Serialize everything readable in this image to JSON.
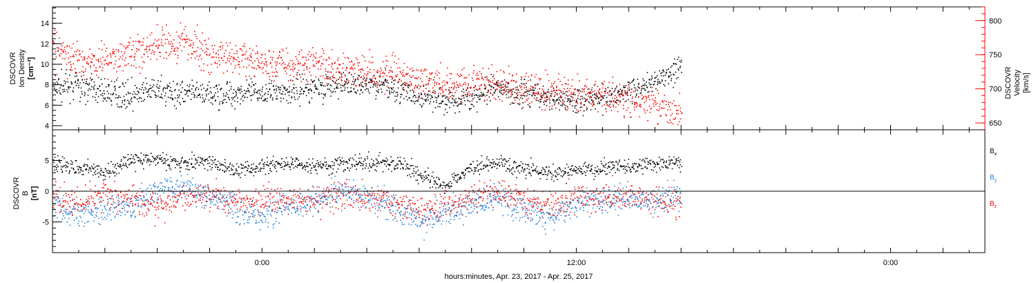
{
  "figure": {
    "xlabel": "hours:minutes, Apr. 23, 2017 - Apr. 25, 2017"
  },
  "chart_data": [
    {
      "type": "scatter",
      "panel": "top",
      "xlabel": "hours:minutes, Apr. 23, 2017 - Apr. 25, 2017",
      "x_unit": "hours relative to Apr. 24, 2017 00:00",
      "xlim": [
        -8.0,
        27.6
      ],
      "x_ticks": [
        0,
        12,
        24
      ],
      "x_tick_labels": [
        "0:00",
        "12:00",
        "0:00"
      ],
      "left_axis": {
        "label_lines": [
          "DSCOVR",
          "Ion Density",
          "[cm⁻³]"
        ],
        "ylim": [
          3.6,
          15.6
        ],
        "ticks": [
          4,
          6,
          8,
          10,
          12,
          14
        ],
        "tick_labels": [
          "4",
          "6",
          "8",
          "10",
          "12",
          "14"
        ],
        "color": "#000000"
      },
      "right_axis": {
        "label_lines": [
          "DSCOVR",
          "Velocity",
          "[km/s]"
        ],
        "ylim": [
          640,
          820
        ],
        "ticks": [
          650,
          700,
          750,
          800
        ],
        "tick_labels": [
          "650",
          "700",
          "750",
          "800"
        ],
        "color": "#ff0000"
      },
      "data_x_range": [
        -8.0,
        16.0
      ],
      "series": [
        {
          "axis": "left",
          "color": "#000000",
          "x": [
            -8,
            -7,
            -6,
            -5,
            -4,
            -3,
            -2,
            -1,
            0,
            1,
            2,
            3,
            4,
            5,
            6,
            7,
            8,
            9,
            10,
            11,
            12,
            13,
            14,
            15,
            16
          ],
          "values": [
            7.8,
            8.0,
            7.3,
            7.0,
            7.5,
            7.2,
            7.0,
            7.3,
            7.2,
            7.5,
            7.8,
            8.0,
            8.2,
            7.8,
            6.8,
            6.5,
            6.8,
            7.5,
            7.3,
            6.8,
            6.5,
            6.8,
            7.5,
            8.5,
            9.5
          ]
        },
        {
          "axis": "right",
          "color": "#ff0000",
          "x": [
            -8,
            -7,
            -6,
            -5,
            -4,
            -3,
            -2,
            -1,
            0,
            1,
            2,
            3,
            4,
            5,
            6,
            7,
            8,
            9,
            10,
            11,
            12,
            13,
            14,
            15,
            16
          ],
          "values": [
            760,
            740,
            745,
            755,
            760,
            770,
            750,
            745,
            740,
            735,
            738,
            730,
            728,
            722,
            712,
            708,
            712,
            704,
            700,
            695,
            696,
            690,
            683,
            678,
            662
          ]
        }
      ]
    },
    {
      "type": "scatter",
      "panel": "bottom",
      "xlabel": "hours:minutes, Apr. 23, 2017 - Apr. 25, 2017",
      "xlim": [
        -8.0,
        27.6
      ],
      "y_axis": {
        "label_lines": [
          "DSCOVR",
          "B",
          "[nT]"
        ],
        "ylim": [
          -10,
          10
        ],
        "ticks": [
          -5,
          0,
          5
        ],
        "tick_labels": [
          "-5",
          "0",
          "5"
        ]
      },
      "zero_line": true,
      "legend_position": "right",
      "data_x_range": [
        -8.0,
        16.0
      ],
      "series": [
        {
          "name": "Bx",
          "label_main": "B",
          "label_sub": "x",
          "color": "#000000",
          "x": [
            -8,
            -7,
            -6,
            -5,
            -4,
            -3,
            -2,
            -1,
            0,
            1,
            2,
            3,
            4,
            5,
            6,
            7,
            8,
            9,
            10,
            11,
            12,
            13,
            14,
            15,
            16
          ],
          "values": [
            4.5,
            4.0,
            3.0,
            5.0,
            5.5,
            4.5,
            4.8,
            3.5,
            4.0,
            4.5,
            4.2,
            4.5,
            4.8,
            4.8,
            3.0,
            1.0,
            4.0,
            4.5,
            4.0,
            3.0,
            3.5,
            3.8,
            4.2,
            4.5,
            4.8
          ]
        },
        {
          "name": "By",
          "label_main": "B",
          "label_sub": "y",
          "color": "#1f7fd9",
          "x": [
            -8,
            -7,
            -6,
            -5,
            -4,
            -3,
            -2,
            -1,
            0,
            1,
            2,
            3,
            4,
            5,
            6,
            7,
            8,
            9,
            10,
            11,
            12,
            13,
            14,
            15,
            16
          ],
          "values": [
            -2.0,
            -3.5,
            -3.0,
            -2.5,
            0.5,
            1.0,
            -1.0,
            -2.5,
            -4.0,
            -2.0,
            -1.5,
            0.0,
            -1.0,
            -2.5,
            -4.5,
            -3.5,
            -2.0,
            -1.0,
            -3.0,
            -4.0,
            -2.0,
            -1.5,
            -1.0,
            -2.0,
            0.0
          ]
        },
        {
          "name": "Bz",
          "label_main": "B",
          "label_sub": "z",
          "color": "#ff0000",
          "x": [
            -8,
            -7,
            -6,
            -5,
            -4,
            -3,
            -2,
            -1,
            0,
            1,
            2,
            3,
            4,
            5,
            6,
            7,
            8,
            9,
            10,
            11,
            12,
            13,
            14,
            15,
            16
          ],
          "values": [
            -1.0,
            -2.0,
            -0.5,
            -1.5,
            -2.5,
            -1.0,
            0.0,
            -2.0,
            -1.5,
            -1.0,
            -1.5,
            -0.5,
            -1.0,
            -2.0,
            -3.0,
            -2.5,
            -1.0,
            0.0,
            -1.5,
            -2.0,
            -1.0,
            -1.0,
            -0.5,
            -2.0,
            -1.5
          ]
        }
      ]
    }
  ]
}
